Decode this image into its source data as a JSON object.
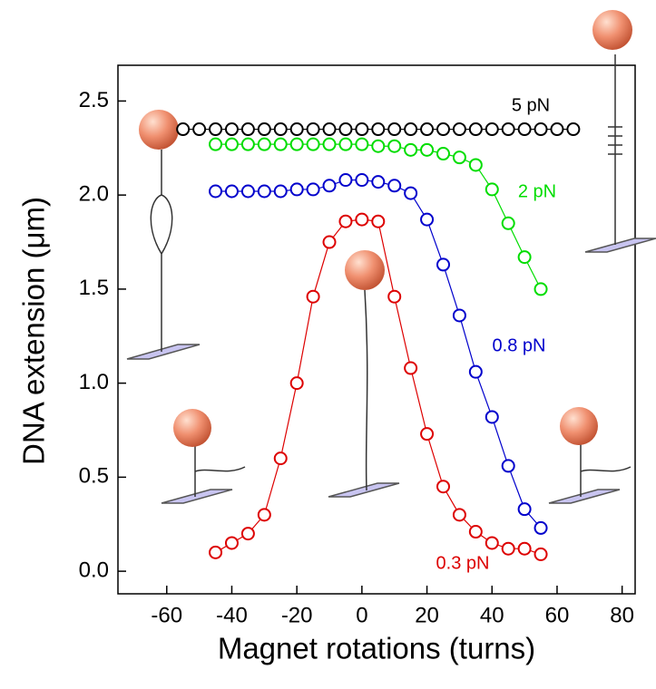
{
  "chart_data": {
    "type": "line",
    "x_label": "Magnet rotations (turns)",
    "y_label": "DNA extension (μm)",
    "xlim": [
      -75,
      84
    ],
    "ylim": [
      -0.12,
      2.69
    ],
    "xticks": [
      -60,
      -40,
      -20,
      0,
      20,
      40,
      60,
      80
    ],
    "yticks": [
      {
        "value": 0,
        "label": "0.0"
      },
      0.5,
      {
        "value": 1,
        "label": "1.0"
      },
      1.5,
      {
        "value": 2,
        "label": "2.0"
      },
      2.5
    ],
    "series": [
      {
        "name": "5 pN",
        "color": "#000000",
        "x": [
          -55,
          -50,
          -45,
          -40,
          -35,
          -30,
          -25,
          -20,
          -15,
          -10,
          -5,
          0,
          5,
          10,
          15,
          20,
          25,
          30,
          35,
          40,
          45,
          50,
          55,
          60,
          65
        ],
        "values": [
          2.35,
          2.35,
          2.35,
          2.35,
          2.35,
          2.35,
          2.35,
          2.35,
          2.35,
          2.35,
          2.35,
          2.35,
          2.35,
          2.35,
          2.35,
          2.35,
          2.35,
          2.35,
          2.35,
          2.35,
          2.35,
          2.35,
          2.35,
          2.35,
          2.35
        ]
      },
      {
        "name": "2 pN",
        "color": "#00dd00",
        "x": [
          -45,
          -40,
          -35,
          -30,
          -25,
          -20,
          -15,
          -10,
          -5,
          0,
          5,
          10,
          15,
          20,
          25,
          30,
          35,
          40,
          45,
          50,
          55
        ],
        "values": [
          2.27,
          2.27,
          2.27,
          2.27,
          2.27,
          2.27,
          2.27,
          2.27,
          2.27,
          2.27,
          2.26,
          2.26,
          2.24,
          2.24,
          2.22,
          2.2,
          2.16,
          2.03,
          1.85,
          1.67,
          1.5
        ]
      },
      {
        "name": "0.8 pN",
        "color": "#0000cc",
        "x": [
          -45,
          -40,
          -35,
          -30,
          -25,
          -20,
          -15,
          -10,
          -5,
          0,
          5,
          10,
          15,
          20,
          25,
          30,
          35,
          40,
          45,
          50,
          55
        ],
        "values": [
          2.02,
          2.02,
          2.02,
          2.02,
          2.02,
          2.03,
          2.03,
          2.05,
          2.08,
          2.08,
          2.07,
          2.05,
          2.01,
          1.87,
          1.63,
          1.36,
          1.06,
          0.82,
          0.56,
          0.33,
          0.23
        ]
      },
      {
        "name": "0.3 pN",
        "color": "#dd0000",
        "x": [
          -45,
          -40,
          -35,
          -30,
          -25,
          -20,
          -15,
          -10,
          -5,
          0,
          5,
          10,
          15,
          20,
          25,
          30,
          35,
          40,
          45,
          50,
          55
        ],
        "values": [
          0.1,
          0.15,
          0.2,
          0.3,
          0.6,
          1.0,
          1.46,
          1.75,
          1.86,
          1.87,
          1.86,
          1.46,
          1.08,
          0.73,
          0.45,
          0.3,
          0.21,
          0.15,
          0.12,
          0.12,
          0.09
        ]
      }
    ]
  }
}
